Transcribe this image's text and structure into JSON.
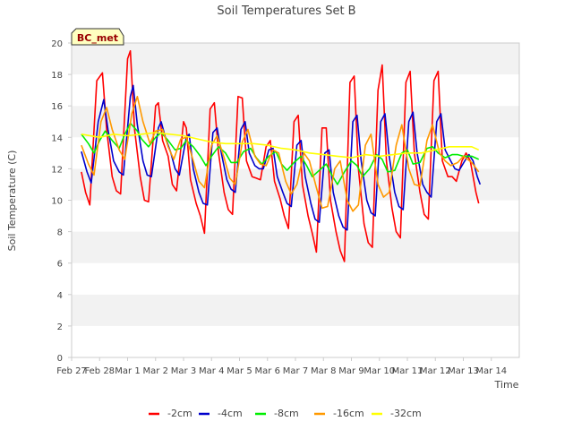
{
  "chart_data": {
    "type": "line",
    "title": "Soil Temperatures Set B",
    "xlabel": "Time",
    "ylabel": "Soil Temperature (C)",
    "station_label": "BC_met",
    "xlim": [
      0,
      16
    ],
    "ylim": [
      0,
      20
    ],
    "x_ticks": [
      {
        "label": "Feb 27",
        "value": 0
      },
      {
        "label": "Feb 28",
        "value": 1
      },
      {
        "label": "Mar 1",
        "value": 2
      },
      {
        "label": "Mar 2",
        "value": 3
      },
      {
        "label": "Mar 3",
        "value": 4
      },
      {
        "label": "Mar 4",
        "value": 5
      },
      {
        "label": "Mar 5",
        "value": 6
      },
      {
        "label": "Mar 6",
        "value": 7
      },
      {
        "label": "Mar 7",
        "value": 8
      },
      {
        "label": "Mar 8",
        "value": 9
      },
      {
        "label": "Mar 9",
        "value": 10
      },
      {
        "label": "Mar 10",
        "value": 11
      },
      {
        "label": "Mar 11",
        "value": 12
      },
      {
        "label": "Mar 12",
        "value": 13
      },
      {
        "label": "Mar 13",
        "value": 14
      },
      {
        "label": "Mar 14",
        "value": 15
      }
    ],
    "y_ticks": [
      0,
      2,
      4,
      6,
      8,
      10,
      12,
      14,
      16,
      18,
      20
    ],
    "grid": "horizontal bands",
    "legend_position": "bottom",
    "series": [
      {
        "name": "-2cm",
        "color": "#ff0000",
        "x": [
          0.35,
          0.5,
          0.65,
          0.9,
          1.1,
          1.25,
          1.45,
          1.6,
          1.75,
          2.0,
          2.1,
          2.25,
          2.45,
          2.6,
          2.75,
          3.0,
          3.1,
          3.25,
          3.45,
          3.6,
          3.75,
          4.0,
          4.1,
          4.25,
          4.45,
          4.6,
          4.75,
          4.95,
          5.1,
          5.25,
          5.45,
          5.6,
          5.75,
          5.95,
          6.1,
          6.25,
          6.45,
          6.6,
          6.75,
          6.95,
          7.1,
          7.25,
          7.45,
          7.6,
          7.75,
          7.95,
          8.1,
          8.25,
          8.45,
          8.6,
          8.75,
          8.95,
          9.1,
          9.25,
          9.45,
          9.6,
          9.75,
          9.95,
          10.1,
          10.25,
          10.45,
          10.6,
          10.75,
          10.95,
          11.1,
          11.25,
          11.45,
          11.6,
          11.75,
          11.95,
          12.1,
          12.25,
          12.45,
          12.6,
          12.75,
          12.95,
          13.1,
          13.25,
          13.45,
          13.6,
          13.75,
          13.95,
          14.1,
          14.25,
          14.45,
          14.55
        ],
        "y": [
          11.8,
          10.5,
          9.7,
          17.6,
          18.1,
          14.5,
          11.5,
          10.6,
          10.4,
          19.0,
          19.5,
          14.5,
          11.5,
          10.0,
          9.9,
          16.0,
          16.2,
          13.8,
          12.8,
          11.0,
          10.6,
          15.0,
          14.6,
          11.3,
          9.8,
          9.0,
          7.9,
          15.8,
          16.2,
          13.0,
          10.5,
          9.4,
          9.1,
          16.6,
          16.5,
          12.5,
          11.5,
          11.4,
          11.3,
          13.4,
          13.8,
          11.2,
          10.1,
          9.0,
          8.2,
          15.0,
          15.4,
          11.0,
          9.0,
          7.9,
          6.7,
          14.6,
          14.6,
          10.0,
          8.0,
          6.8,
          6.1,
          17.5,
          17.9,
          12.0,
          8.5,
          7.3,
          7.0,
          17.0,
          18.6,
          12.5,
          9.5,
          8.0,
          7.6,
          17.5,
          18.2,
          13.0,
          10.5,
          9.1,
          8.8,
          17.6,
          18.2,
          12.5,
          11.5,
          11.5,
          11.2,
          12.5,
          13.0,
          12.5,
          10.5,
          9.8
        ]
      },
      {
        "name": "-4cm",
        "color": "#0000cc",
        "x": [
          0.35,
          0.55,
          0.7,
          0.95,
          1.15,
          1.3,
          1.5,
          1.7,
          1.85,
          2.1,
          2.2,
          2.35,
          2.55,
          2.7,
          2.85,
          3.1,
          3.2,
          3.35,
          3.55,
          3.7,
          3.85,
          4.1,
          4.2,
          4.35,
          4.55,
          4.7,
          4.85,
          5.05,
          5.2,
          5.35,
          5.55,
          5.7,
          5.85,
          6.05,
          6.2,
          6.35,
          6.55,
          6.7,
          6.85,
          7.05,
          7.2,
          7.35,
          7.55,
          7.7,
          7.85,
          8.05,
          8.2,
          8.35,
          8.55,
          8.7,
          8.85,
          9.05,
          9.2,
          9.35,
          9.55,
          9.7,
          9.85,
          10.05,
          10.2,
          10.35,
          10.55,
          10.7,
          10.85,
          11.05,
          11.2,
          11.35,
          11.55,
          11.7,
          11.85,
          12.05,
          12.2,
          12.35,
          12.55,
          12.7,
          12.85,
          13.05,
          13.2,
          13.35,
          13.55,
          13.7,
          13.85,
          14.05,
          14.2,
          14.35,
          14.5,
          14.6
        ],
        "y": [
          13.1,
          11.8,
          11.1,
          15.0,
          16.4,
          14.5,
          12.5,
          11.8,
          11.6,
          16.6,
          17.3,
          14.8,
          12.5,
          11.6,
          11.5,
          14.6,
          15.0,
          14.0,
          13.0,
          12.0,
          11.6,
          14.0,
          14.2,
          12.0,
          10.5,
          9.8,
          9.7,
          14.3,
          14.6,
          13.0,
          11.3,
          10.7,
          10.5,
          14.5,
          15.0,
          13.0,
          12.2,
          12.0,
          12.0,
          13.2,
          13.3,
          11.5,
          10.5,
          9.8,
          9.6,
          13.5,
          13.8,
          11.5,
          9.8,
          8.8,
          8.6,
          13.0,
          13.2,
          10.5,
          9.0,
          8.3,
          8.1,
          15.0,
          15.4,
          12.5,
          10.0,
          9.2,
          9.0,
          15.0,
          15.5,
          12.8,
          10.5,
          9.6,
          9.4,
          15.0,
          15.6,
          13.0,
          11.0,
          10.5,
          10.2,
          15.0,
          15.5,
          13.2,
          12.5,
          12.0,
          11.9,
          12.5,
          12.9,
          12.5,
          11.5,
          11.0
        ]
      },
      {
        "name": "-8cm",
        "color": "#00ee00",
        "x": [
          0.35,
          0.6,
          0.8,
          1.0,
          1.2,
          1.45,
          1.7,
          1.9,
          2.1,
          2.35,
          2.5,
          2.75,
          3.0,
          3.2,
          3.45,
          3.7,
          3.9,
          4.1,
          4.35,
          4.6,
          4.8,
          5.0,
          5.25,
          5.5,
          5.7,
          5.9,
          6.15,
          6.4,
          6.6,
          6.8,
          7.05,
          7.3,
          7.5,
          7.7,
          7.95,
          8.2,
          8.4,
          8.6,
          8.85,
          9.1,
          9.3,
          9.5,
          9.75,
          10.0,
          10.2,
          10.4,
          10.65,
          10.9,
          11.1,
          11.3,
          11.55,
          11.8,
          12.0,
          12.2,
          12.45,
          12.7,
          12.9,
          13.1,
          13.35,
          13.6,
          13.8,
          14.0,
          14.3,
          14.55
        ],
        "y": [
          14.2,
          13.6,
          13.0,
          13.8,
          14.4,
          13.8,
          13.3,
          14.2,
          14.9,
          14.4,
          13.9,
          13.4,
          14.0,
          14.3,
          13.8,
          13.2,
          13.3,
          13.8,
          13.4,
          12.8,
          12.2,
          12.8,
          13.4,
          13.0,
          12.4,
          12.4,
          13.1,
          13.3,
          12.7,
          12.3,
          12.8,
          13.1,
          12.3,
          11.9,
          12.4,
          12.8,
          12.2,
          11.5,
          11.9,
          12.3,
          11.6,
          11.0,
          11.8,
          12.5,
          12.2,
          11.5,
          12.0,
          12.9,
          12.6,
          11.8,
          11.9,
          13.0,
          13.2,
          12.3,
          12.4,
          13.3,
          13.4,
          13.0,
          12.7,
          12.9,
          12.9,
          12.8,
          12.8,
          12.6
        ]
      },
      {
        "name": "-16cm",
        "color": "#ff9900",
        "x": [
          0.35,
          0.6,
          0.8,
          1.05,
          1.25,
          1.45,
          1.7,
          1.9,
          2.15,
          2.35,
          2.55,
          2.8,
          3.0,
          3.25,
          3.45,
          3.65,
          3.9,
          4.1,
          4.35,
          4.55,
          4.75,
          5.0,
          5.2,
          5.45,
          5.65,
          5.85,
          6.1,
          6.3,
          6.55,
          6.75,
          6.95,
          7.2,
          7.4,
          7.65,
          7.85,
          8.05,
          8.3,
          8.5,
          8.75,
          8.95,
          9.15,
          9.4,
          9.6,
          9.85,
          10.05,
          10.25,
          10.5,
          10.7,
          10.95,
          11.15,
          11.35,
          11.6,
          11.8,
          12.05,
          12.25,
          12.45,
          12.7,
          12.9,
          13.15,
          13.35,
          13.55,
          13.8,
          14.0,
          14.3,
          14.55
        ],
        "y": [
          13.5,
          12.3,
          11.6,
          15.0,
          15.9,
          14.5,
          13.2,
          12.6,
          15.5,
          16.6,
          15.0,
          13.6,
          14.4,
          14.5,
          13.4,
          12.6,
          13.9,
          14.0,
          12.5,
          11.2,
          10.8,
          13.5,
          14.1,
          12.7,
          11.4,
          11.0,
          13.7,
          14.5,
          12.8,
          12.3,
          12.2,
          13.2,
          13.0,
          11.2,
          10.4,
          11.0,
          13.0,
          12.5,
          10.8,
          9.5,
          9.6,
          12.0,
          12.5,
          10.0,
          9.3,
          9.7,
          13.5,
          14.2,
          11.0,
          10.2,
          10.5,
          13.5,
          14.8,
          12.0,
          11.0,
          10.9,
          13.8,
          14.8,
          13.0,
          12.5,
          12.2,
          12.4,
          12.8,
          12.4,
          11.8
        ]
      },
      {
        "name": "-32cm",
        "color": "#ffff00",
        "x": [
          0.35,
          1.0,
          1.5,
          2.0,
          2.5,
          3.0,
          3.5,
          4.0,
          4.5,
          5.0,
          5.5,
          6.0,
          6.5,
          7.0,
          7.5,
          8.0,
          8.5,
          9.0,
          9.5,
          10.0,
          10.5,
          11.0,
          11.5,
          12.0,
          12.5,
          13.0,
          13.5,
          14.0,
          14.3,
          14.55
        ],
        "y": [
          14.2,
          14.0,
          14.2,
          14.1,
          14.2,
          14.3,
          14.2,
          14.1,
          13.9,
          13.7,
          13.6,
          13.6,
          13.6,
          13.5,
          13.3,
          13.2,
          13.0,
          12.9,
          12.8,
          12.7,
          12.9,
          12.8,
          12.9,
          13.0,
          13.0,
          13.2,
          13.4,
          13.4,
          13.4,
          13.2
        ]
      }
    ]
  }
}
